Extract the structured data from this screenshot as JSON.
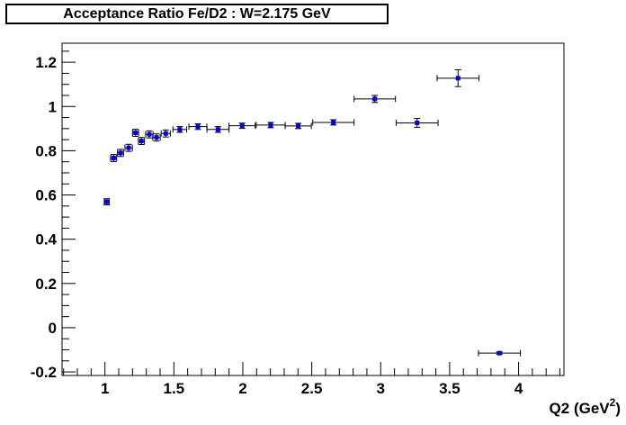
{
  "title": "Acceptance Ratio Fe/D2 : W=2.175 GeV",
  "chart_data": {
    "type": "scatter",
    "title": "Acceptance Ratio Fe/D2 : W=2.175 GeV",
    "xlabel": {
      "main": "Q2 (GeV",
      "sup": "2",
      "end": ")"
    },
    "ylabel": "",
    "xlim": [
      0.689,
      4.329
    ],
    "ylim": [
      -0.216,
      1.286
    ],
    "x_major_ticks": [
      1,
      1.5,
      2,
      2.5,
      3,
      3.5,
      4
    ],
    "x_major_labels": [
      "1",
      "1.5",
      "2",
      "2.5",
      "3",
      "3.5",
      "4"
    ],
    "x_major_step": 0.5,
    "x_minor_step": 0.1,
    "y_major_ticks": [
      -0.2,
      0,
      0.2,
      0.4,
      0.6,
      0.8,
      1,
      1.2
    ],
    "y_major_labels": [
      "-0.2",
      "0",
      "0.2",
      "0.4",
      "0.6",
      "0.8",
      "1",
      "1.2"
    ],
    "y_major_step": 0.2,
    "y_minor_step": 0.05,
    "grid": false,
    "legend": null,
    "marker": {
      "shape": "square",
      "color": "#0000dd",
      "size": 5
    },
    "error_bar_color": "#000000",
    "frame_color": "#000000",
    "background_color": "#ffffff",
    "points": [
      {
        "x": 1.013,
        "y": 0.569,
        "xerr": 0.018,
        "yerr": 0.014
      },
      {
        "x": 1.063,
        "y": 0.767,
        "xerr": 0.022,
        "yerr": 0.016
      },
      {
        "x": 1.113,
        "y": 0.79,
        "xerr": 0.022,
        "yerr": 0.016
      },
      {
        "x": 1.172,
        "y": 0.813,
        "xerr": 0.027,
        "yerr": 0.016
      },
      {
        "x": 1.222,
        "y": 0.881,
        "xerr": 0.022,
        "yerr": 0.016
      },
      {
        "x": 1.265,
        "y": 0.844,
        "xerr": 0.022,
        "yerr": 0.016
      },
      {
        "x": 1.322,
        "y": 0.874,
        "xerr": 0.027,
        "yerr": 0.016
      },
      {
        "x": 1.374,
        "y": 0.86,
        "xerr": 0.027,
        "yerr": 0.016
      },
      {
        "x": 1.441,
        "y": 0.878,
        "xerr": 0.033,
        "yerr": 0.016
      },
      {
        "x": 1.543,
        "y": 0.896,
        "xerr": 0.05,
        "yerr": 0.013
      },
      {
        "x": 1.674,
        "y": 0.909,
        "xerr": 0.065,
        "yerr": 0.013
      },
      {
        "x": 1.82,
        "y": 0.896,
        "xerr": 0.08,
        "yerr": 0.013
      },
      {
        "x": 1.995,
        "y": 0.913,
        "xerr": 0.095,
        "yerr": 0.012
      },
      {
        "x": 2.202,
        "y": 0.916,
        "xerr": 0.105,
        "yerr": 0.012
      },
      {
        "x": 2.402,
        "y": 0.912,
        "xerr": 0.095,
        "yerr": 0.012
      },
      {
        "x": 2.657,
        "y": 0.928,
        "xerr": 0.15,
        "yerr": 0.012
      },
      {
        "x": 2.957,
        "y": 1.034,
        "xerr": 0.15,
        "yerr": 0.016
      },
      {
        "x": 3.264,
        "y": 0.926,
        "xerr": 0.152,
        "yerr": 0.02
      },
      {
        "x": 3.561,
        "y": 1.128,
        "xerr": 0.152,
        "yerr": 0.038
      },
      {
        "x": 3.861,
        "y": -0.115,
        "xerr": 0.152,
        "yerr": 0.005
      }
    ]
  }
}
